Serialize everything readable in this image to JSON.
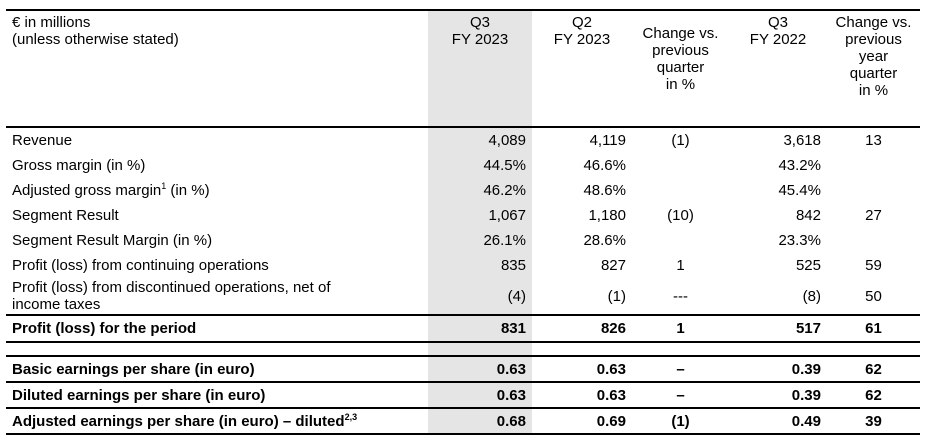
{
  "header": {
    "unit_line1": "€ in millions",
    "unit_line2": "(unless otherwise stated)",
    "col_q3fy23_l1": "Q3",
    "col_q3fy23_l2": "FY 2023",
    "col_q2fy23_l1": "Q2",
    "col_q2fy23_l2": "FY 2023",
    "col_chg_q_l1": "Change vs.",
    "col_chg_q_l2": "previous",
    "col_chg_q_l3": "quarter",
    "col_chg_q_l4": "in %",
    "col_q3fy22_l1": "Q3",
    "col_q3fy22_l2": "FY 2022",
    "col_chg_y_l1": "Change vs.",
    "col_chg_y_l2": "previous",
    "col_chg_y_l3": "year",
    "col_chg_y_l4": "quarter",
    "col_chg_y_l5": "in %"
  },
  "rows": [
    {
      "label": "Revenue",
      "q3fy23": "4,089",
      "q2fy23": "4,119",
      "chg_q": "(1)",
      "q3fy22": "3,618",
      "chg_y": "13"
    },
    {
      "label": "Gross margin (in %)",
      "q3fy23": "44.5%",
      "q2fy23": "46.6%",
      "chg_q": "",
      "q3fy22": "43.2%",
      "chg_y": ""
    },
    {
      "label": "Adjusted gross margin",
      "sup": "1",
      "label_suffix": " (in %)",
      "q3fy23": "46.2%",
      "q2fy23": "48.6%",
      "chg_q": "",
      "q3fy22": "45.4%",
      "chg_y": ""
    },
    {
      "label": "Segment Result",
      "q3fy23": "1,067",
      "q2fy23": "1,180",
      "chg_q": "(10)",
      "q3fy22": "842",
      "chg_y": "27"
    },
    {
      "label": "Segment Result Margin (in %)",
      "q3fy23": "26.1%",
      "q2fy23": "28.6%",
      "chg_q": "",
      "q3fy22": "23.3%",
      "chg_y": ""
    },
    {
      "label": "Profit (loss) from continuing operations",
      "q3fy23": "835",
      "q2fy23": "827",
      "chg_q": "1",
      "q3fy22": "525",
      "chg_y": "59"
    },
    {
      "label_l1": "Profit (loss) from discontinued operations, net of",
      "label_l2": "income taxes",
      "q3fy23": "(4)",
      "q2fy23": "(1)",
      "chg_q": "---",
      "q3fy22": "(8)",
      "chg_y": "50"
    },
    {
      "label": "Profit (loss) for the period",
      "q3fy23": "831",
      "q2fy23": "826",
      "chg_q": "1",
      "q3fy22": "517",
      "chg_y": "61"
    }
  ],
  "eps": [
    {
      "label": "Basic earnings per share (in euro)",
      "q3fy23": "0.63",
      "q2fy23": "0.63",
      "chg_q": "–",
      "q3fy22": "0.39",
      "chg_y": "62"
    },
    {
      "label": "Diluted earnings per share (in euro)",
      "q3fy23": "0.63",
      "q2fy23": "0.63",
      "chg_q": "–",
      "q3fy22": "0.39",
      "chg_y": "62"
    },
    {
      "label": "Adjusted earnings per share (in euro) – diluted",
      "sup": "2,3",
      "q3fy23": "0.68",
      "q2fy23": "0.69",
      "chg_q": "(1)",
      "q3fy22": "0.49",
      "chg_y": "39"
    }
  ]
}
